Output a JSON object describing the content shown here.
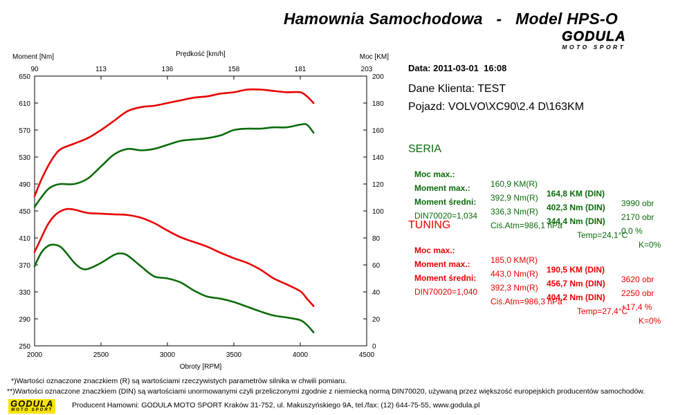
{
  "title": "Hamownia Samochodowa   -   Model HPS-O",
  "logo": {
    "brand": "GODULA",
    "tagline": "MOTO SPORT"
  },
  "info": {
    "date": "Data: 2011-03-01  16:08",
    "client": "Dane Klienta: TEST",
    "vehicle": "Pojazd: VOLVO\\XC90\\2.4 D\\163KM"
  },
  "colors": {
    "seria": "#0a6b0a",
    "tuning": "#e80000",
    "seria_text": "#0a6b0a",
    "tuning_text": "#e80000"
  },
  "seria": {
    "heading": "SERIA",
    "rows": [
      {
        "label": "Moc max.:",
        "r": "160,9 KM(R)",
        "din": "164,8 KM (DIN)",
        "extra": "3990 obr"
      },
      {
        "label": "Moment max.:",
        "r": "392,9 Nm(R)",
        "din": "402,3 Nm (DIN)",
        "extra": "2170 obr"
      },
      {
        "label": "Moment średni:",
        "r": "336,3 Nm(R)",
        "din": "344,4 Nm (DIN)",
        "extra": "0,0 %"
      }
    ],
    "din_line": {
      "norm": "DIN70020=1,034",
      "atm": "Ciś.Atm=986,1 hPa",
      "temp": "Temp=24,1°C",
      "k": "K=0%"
    }
  },
  "tuning": {
    "heading": "TUNING",
    "rows": [
      {
        "label": "Moc max.:",
        "r": "185,0 KM(R)",
        "din": "190,5 KM (DIN)",
        "extra": "3620 obr"
      },
      {
        "label": "Moment max.:",
        "r": "443,0 Nm(R)",
        "din": "456,7 Nm (DIN)",
        "extra": "2250 obr"
      },
      {
        "label": "Moment średni:",
        "r": "392,3 Nm(R)",
        "din": "404,2 Nm (DIN)",
        "extra": "+17,4 %"
      }
    ],
    "din_line": {
      "norm": "DIN70020=1,040",
      "atm": "Ciś.Atm=986,3 hPa",
      "temp": "Temp=27,4°C",
      "k": "K=0%"
    }
  },
  "footnotes": {
    "line1": "*)Wartości oznaczone znaczkiem (R) są wartościami rzeczywistych parametrów silnika w chwili pomiaru.",
    "line2": "**)Wartości oznaczone znaczkiem (DIN) są wartościami unormowanymi czyli przeliczonymi zgodnie z niemiecką normą DIN70020, używaną przez większość europejskich producentów samochodów."
  },
  "producer": "Producent Hamowni: GODULA MOTO SPORT Kraków 31-752, ul. Makuszyńskiego 9A, tel./fax: (12) 644-75-55, www.godula.pl",
  "chart_data": {
    "type": "line",
    "xlabel": "Obroty [RPM]",
    "top_xlabel": "Prędkość [km/h]",
    "ylabel_left": "Moment [Nm]",
    "ylabel_right": "Moc [KM]",
    "xlim": [
      2000,
      4500
    ],
    "ylim_left": [
      250,
      650
    ],
    "ylim_right": [
      0,
      200
    ],
    "x_ticks": [
      "2000",
      "2500",
      "3000",
      "3500",
      "4000",
      "4500"
    ],
    "top_ticks": [
      "90",
      "113",
      "136",
      "158",
      "181",
      "203"
    ],
    "left_ticks": [
      "250",
      "290",
      "330",
      "370",
      "410",
      "450",
      "490",
      "530",
      "570",
      "610",
      "650"
    ],
    "right_ticks": [
      "0",
      "20",
      "40",
      "60",
      "80",
      "100",
      "120",
      "140",
      "160",
      "180",
      "200"
    ],
    "grid": false,
    "series": [
      {
        "name": "TUNING",
        "axis": "right",
        "color": "#e80000",
        "x": [
          2000,
          2050,
          2100,
          2150,
          2200,
          2300,
          2400,
          2500,
          2600,
          2700,
          2800,
          2900,
          3000,
          3100,
          3200,
          3300,
          3400,
          3500,
          3600,
          3700,
          3800,
          3900,
          4000,
          4050,
          4100
        ],
        "y": [
          111,
          123,
          133,
          141,
          146,
          150,
          154,
          160,
          167,
          174,
          177,
          178,
          180,
          182,
          184,
          185,
          187,
          188,
          190,
          190,
          189,
          188,
          188,
          185,
          180
        ]
      },
      {
        "name": "SERIA",
        "axis": "right",
        "color": "#0a6b0a",
        "x": [
          2000,
          2050,
          2100,
          2150,
          2200,
          2300,
          2400,
          2500,
          2600,
          2700,
          2800,
          2900,
          3000,
          3100,
          3200,
          3300,
          3400,
          3500,
          3600,
          3700,
          3800,
          3900,
          4000,
          4050,
          4100
        ],
        "y": [
          103,
          110,
          116,
          119,
          120,
          120,
          124,
          133,
          142,
          146,
          145,
          146,
          149,
          152,
          153,
          154,
          156,
          160,
          161,
          161,
          162,
          162,
          164,
          164,
          158
        ]
      },
      {
        "name": "TUNING",
        "axis": "left",
        "color": "#e80000",
        "x": [
          2000,
          2050,
          2100,
          2150,
          2200,
          2250,
          2300,
          2400,
          2500,
          2600,
          2700,
          2800,
          2900,
          3000,
          3100,
          3200,
          3300,
          3400,
          3500,
          3600,
          3700,
          3800,
          3900,
          4000,
          4050,
          4100
        ],
        "y": [
          389,
          410,
          430,
          443,
          450,
          453,
          452,
          447,
          446,
          445,
          444,
          440,
          432,
          421,
          411,
          404,
          397,
          388,
          380,
          373,
          363,
          350,
          341,
          331,
          320,
          309
        ]
      },
      {
        "name": "SERIA",
        "axis": "left",
        "color": "#0a6b0a",
        "x": [
          2000,
          2050,
          2100,
          2150,
          2200,
          2250,
          2300,
          2350,
          2400,
          2500,
          2600,
          2650,
          2700,
          2800,
          2900,
          3000,
          3100,
          3200,
          3300,
          3400,
          3500,
          3600,
          3700,
          3800,
          3900,
          4000,
          4050,
          4100
        ],
        "y": [
          368,
          388,
          398,
          400,
          396,
          385,
          373,
          365,
          364,
          373,
          385,
          387,
          384,
          368,
          353,
          350,
          344,
          332,
          323,
          320,
          315,
          308,
          301,
          295,
          292,
          288,
          281,
          270
        ]
      }
    ]
  }
}
